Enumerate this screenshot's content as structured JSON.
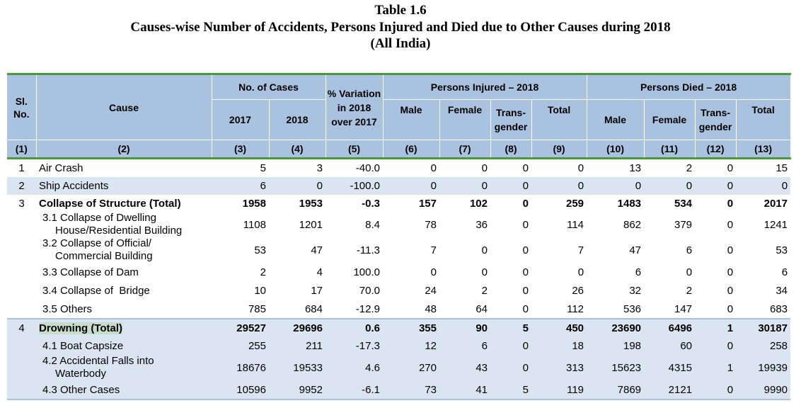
{
  "title": {
    "line1": "Table 1.6",
    "line2": "Causes-wise Number of Accidents, Persons Injured and Died due to Other Causes during 2018",
    "line3": "(All India)"
  },
  "header": {
    "sl": "Sl. No.",
    "cause": "Cause",
    "cases": "No. of Cases",
    "variation": "% Variation in 2018 over 2017",
    "injured": "Persons Injured – 2018",
    "died": "Persons Died – 2018",
    "y2017": "2017",
    "y2018": "2018",
    "male": "Male",
    "female": "Female",
    "trans": "Trans-gender",
    "total": "Total",
    "colnums": [
      "(1)",
      "(2)",
      "(3)",
      "(4)",
      "(5)",
      "(6)",
      "(7)",
      "(8)",
      "(9)",
      "(10)",
      "(11)",
      "(12)",
      "(13)"
    ]
  },
  "rows": [
    {
      "sl": "1",
      "cause": "Air Crash",
      "v": [
        "5",
        "3",
        "-40.0",
        "0",
        "0",
        "0",
        "0",
        "13",
        "2",
        "0",
        "15"
      ]
    },
    {
      "sl": "2",
      "cause": "Ship Accidents",
      "v": [
        "6",
        "0",
        "-100.0",
        "0",
        "0",
        "0",
        "0",
        "0",
        "0",
        "0",
        "0"
      ]
    },
    {
      "sl": "3",
      "cause": "Collapse of Structure (Total)",
      "v": [
        "1958",
        "1953",
        "-0.3",
        "157",
        "102",
        "0",
        "259",
        "1483",
        "534",
        "0",
        "2017"
      ]
    },
    {
      "sl": "",
      "cause_a": "3.1 Collapse of Dwelling",
      "cause_b": "House/Residential Building",
      "v": [
        "1108",
        "1201",
        "8.4",
        "78",
        "36",
        "0",
        "114",
        "862",
        "379",
        "0",
        "1241"
      ]
    },
    {
      "sl": "",
      "cause_a": "3.2 Collapse of Official/",
      "cause_b": "Commercial Building",
      "v": [
        "53",
        "47",
        "-11.3",
        "7",
        "0",
        "0",
        "7",
        "47",
        "6",
        "0",
        "53"
      ]
    },
    {
      "sl": "",
      "cause": "3.3 Collapse of Dam",
      "v": [
        "2",
        "4",
        "100.0",
        "0",
        "0",
        "0",
        "0",
        "6",
        "0",
        "0",
        "6"
      ]
    },
    {
      "sl": "",
      "cause": "3.4 Collapse of  Bridge",
      "v": [
        "10",
        "17",
        "70.0",
        "24",
        "2",
        "0",
        "26",
        "32",
        "2",
        "0",
        "34"
      ]
    },
    {
      "sl": "",
      "cause": "3.5 Others",
      "v": [
        "785",
        "684",
        "-12.9",
        "48",
        "64",
        "0",
        "112",
        "536",
        "147",
        "0",
        "683"
      ]
    },
    {
      "sl": "4",
      "cause": "Drowning (Total)",
      "v": [
        "29527",
        "29696",
        "0.6",
        "355",
        "90",
        "5",
        "450",
        "23690",
        "6496",
        "1",
        "30187"
      ]
    },
    {
      "sl": "",
      "cause": "4.1 Boat Capsize",
      "v": [
        "255",
        "211",
        "-17.3",
        "12",
        "6",
        "0",
        "18",
        "198",
        "60",
        "0",
        "258"
      ]
    },
    {
      "sl": "",
      "cause_a": "4.2 Accidental Falls into",
      "cause_b": "Waterbody",
      "v": [
        "18676",
        "19533",
        "4.6",
        "270",
        "43",
        "0",
        "313",
        "15623",
        "4315",
        "1",
        "19939"
      ]
    },
    {
      "sl": "",
      "cause": "4.3 Other Cases",
      "v": [
        "10596",
        "9952",
        "-6.1",
        "73",
        "41",
        "5",
        "119",
        "7869",
        "2121",
        "0",
        "9990"
      ]
    }
  ]
}
